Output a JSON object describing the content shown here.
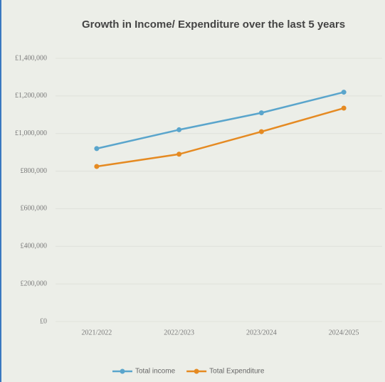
{
  "chart_data": {
    "type": "line",
    "title": "Growth in Income/ Expenditure over the last 5 years",
    "categories": [
      "2021/2022",
      "2022/2023",
      "2023/2024",
      "2024/2025"
    ],
    "series": [
      {
        "name": "Total income",
        "color": "#5aa5cc",
        "values": [
          920000,
          1020000,
          1110000,
          1220000
        ]
      },
      {
        "name": "Total Expenditure",
        "color": "#e58a22",
        "values": [
          825000,
          890000,
          1010000,
          1135000
        ]
      }
    ],
    "ylim": [
      0,
      1400000
    ],
    "yticks": [
      {
        "value": 0,
        "label": "£0"
      },
      {
        "value": 200000,
        "label": "£200,000"
      },
      {
        "value": 400000,
        "label": "£400,000"
      },
      {
        "value": 600000,
        "label": "£600,000"
      },
      {
        "value": 800000,
        "label": "£800,000"
      },
      {
        "value": 1000000,
        "label": "£1,000,000"
      },
      {
        "value": 1200000,
        "label": "£1,200,000"
      },
      {
        "value": 1400000,
        "label": "£1,400,000"
      }
    ],
    "grid": true,
    "legend": "bottom"
  }
}
